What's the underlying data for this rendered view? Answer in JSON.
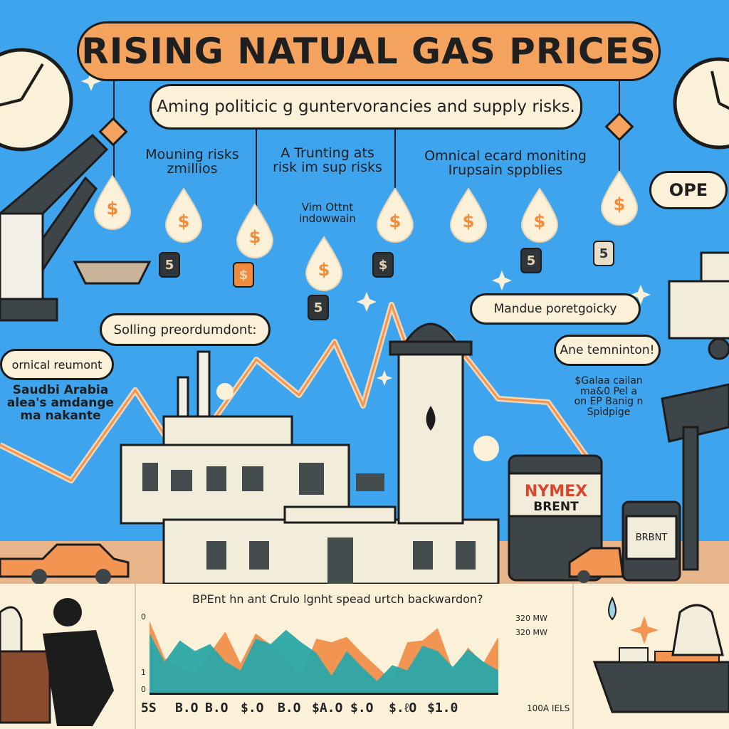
{
  "title": "RISING  NATUAL GAS PRICES",
  "subtitle": "Aming politicic g guntervorancies and supply risks.",
  "labels": {
    "mounting": "Mouning risks\nzmillios",
    "trunting": "A Trunting ats\nrisk im sup  risks",
    "omnical": "Omnical ecard moniting\nIrupsain sppblies",
    "vim": "Vim Ottnt\nindowwain",
    "solling": "Solling preordumdont:",
    "omical_left": "ornical  reumont",
    "saudi": "Saudbi Arabia\nalea's amdange\nma nakante",
    "mandue": "Mandue poretgoicky",
    "ane": "Ane temninton!",
    "sgalaa": "$Galaa cailan\nma&0 Pel a\non EP Banig n\nSpidpige",
    "ope": "OPE"
  },
  "labels_barrels": {
    "nymex": "NYMEX",
    "brent": "BRENT",
    "brent_small": "BRBNT"
  },
  "drops": [
    "$",
    "$",
    "$",
    "$",
    "$",
    "$",
    "$",
    "$"
  ],
  "cans": [
    "5",
    "$",
    "5",
    "$",
    "5",
    "5"
  ],
  "chart": {
    "title": "BPEnt hn ant Crulo lgnht spead urtch backwardon?",
    "y_ticks": [
      "0",
      "",
      "",
      "",
      "",
      "1",
      "0"
    ],
    "right_labels": [
      "320 MW",
      "320 MW"
    ],
    "x_ticks": [
      "5S",
      "B.O",
      "B.O",
      "$.O",
      "B.O",
      "$A.O",
      "$.O",
      "$.ℓO",
      "$1.0"
    ],
    "x_extra": "100A IELS"
  },
  "chart_data": {
    "type": "area",
    "series": [
      {
        "values": [
          82,
          40,
          30,
          22,
          46,
          70,
          34,
          68,
          55,
          38,
          20,
          62,
          58,
          64,
          46,
          30,
          14,
          58,
          60,
          74,
          26,
          52,
          34,
          64
        ]
      },
      {
        "values": [
          68,
          36,
          60,
          48,
          56,
          36,
          26,
          62,
          56,
          72,
          58,
          46,
          20,
          48,
          30,
          14,
          32,
          26,
          54,
          48,
          30,
          50,
          36,
          26
        ]
      }
    ]
  },
  "colors": {
    "sky": "#3fa4ee",
    "orange": "#f4a35e",
    "cream": "#fbf1d8",
    "teal": "#2aa6a8",
    "chart_orange": "#f29553"
  }
}
